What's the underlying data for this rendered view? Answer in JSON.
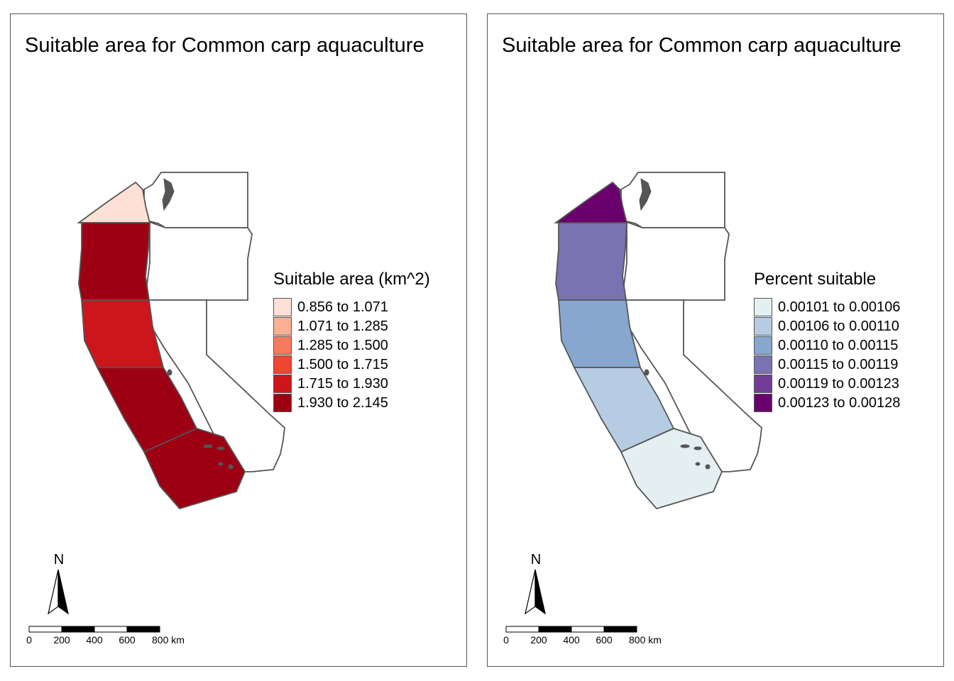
{
  "panels": [
    {
      "title": "Suitable area for Common carp aquaculture",
      "legend": {
        "title": "Suitable area (km^2)",
        "items": [
          {
            "label": "0.856 to 1.071",
            "color": "#fde0d6"
          },
          {
            "label": "1.071 to 1.285",
            "color": "#fcaf93"
          },
          {
            "label": "1.285 to 1.500",
            "color": "#f87a5c"
          },
          {
            "label": "1.500 to 1.715",
            "color": "#ef4533"
          },
          {
            "label": "1.715 to 1.930",
            "color": "#cd151c"
          },
          {
            "label": "1.930 to 2.145",
            "color": "#9d0012"
          }
        ]
      },
      "region_classes": [
        0,
        5,
        4,
        5,
        5
      ]
    },
    {
      "title": "Suitable area for Common carp aquaculture",
      "legend": {
        "title": "Percent suitable",
        "items": [
          {
            "label": "0.00101 to 0.00106",
            "color": "#e4eff2"
          },
          {
            "label": "0.00106 to 0.00110",
            "color": "#b6cce3"
          },
          {
            "label": "0.00110 to 0.00115",
            "color": "#88a7cf"
          },
          {
            "label": "0.00115 to 0.00119",
            "color": "#7a73b2"
          },
          {
            "label": "0.00119 to 0.00123",
            "color": "#733c98"
          },
          {
            "label": "0.00123 to 0.00128",
            "color": "#6a006e"
          }
        ]
      },
      "region_classes": [
        5,
        3,
        2,
        1,
        0
      ]
    }
  ],
  "north_arrow": {
    "label": "N"
  },
  "scale_bar": {
    "ticks": [
      "0",
      "200",
      "400",
      "600",
      "800 km"
    ]
  },
  "colors": {
    "border": "#555555",
    "state_fill": "#ffffff"
  }
}
